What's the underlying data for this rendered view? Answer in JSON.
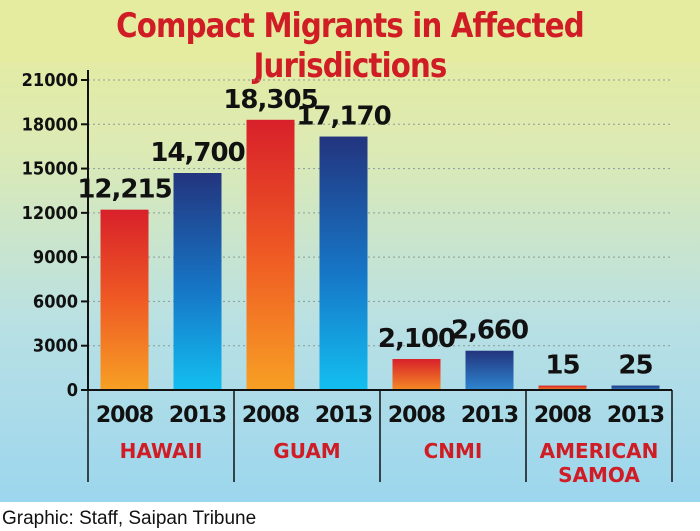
{
  "title": "Compact Migrants in Affected Jurisdictions",
  "credit": "Graphic: Staff, Saipan Tribune",
  "colors": {
    "title": "#d01c24",
    "bar_2008_top": "#d8202a",
    "bar_2008_bottom": "#f7a024",
    "bar_2013_top": "#23347e",
    "bar_2013_bottom": "#13bff0",
    "group_label": "#d01c24"
  },
  "chart_data": {
    "type": "bar",
    "title": "Compact Migrants in Affected Jurisdictions",
    "xlabel": "",
    "ylabel": "",
    "ylim": [
      0,
      21000
    ],
    "yticks": [
      0,
      3000,
      6000,
      9000,
      12000,
      15000,
      18000,
      21000
    ],
    "ytick_labels": [
      "0",
      "3000",
      "6000",
      "9000",
      "12000",
      "15000",
      "18000",
      "21000"
    ],
    "grid": true,
    "groups": [
      {
        "name": "HAWAII",
        "lines": [
          "HAWAII"
        ]
      },
      {
        "name": "GUAM",
        "lines": [
          "GUAM"
        ]
      },
      {
        "name": "CNMI",
        "lines": [
          "CNMI"
        ]
      },
      {
        "name": "AMERICAN SAMOA",
        "lines": [
          "AMERICAN",
          "SAMOA"
        ]
      }
    ],
    "years": [
      "2008",
      "2013"
    ],
    "series": [
      {
        "name": "2008",
        "values": [
          12215,
          18305,
          2100,
          15
        ],
        "labels": [
          "12,215",
          "18,305",
          "2,100",
          "15"
        ]
      },
      {
        "name": "2013",
        "values": [
          14700,
          17170,
          2660,
          25
        ],
        "labels": [
          "14,700",
          "17,170",
          "2,660",
          "25"
        ]
      }
    ]
  }
}
